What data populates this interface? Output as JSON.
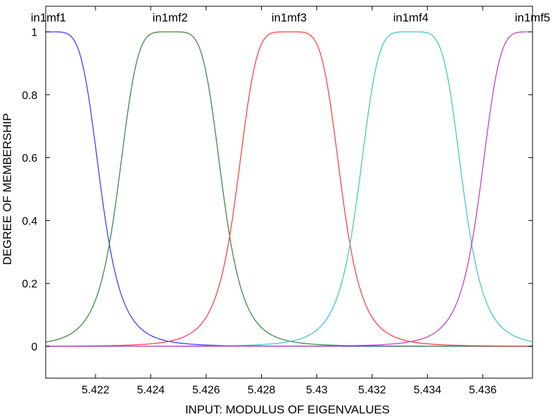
{
  "chart_data": {
    "type": "line",
    "title": "",
    "xlabel": "INPUT: MODULUS OF EIGENVALUES",
    "ylabel": "DEGREE OF MEMBERSHIP",
    "xlim": [
      5.4202,
      5.4378
    ],
    "ylim": [
      -0.1,
      1.0
    ],
    "x_ticks": [
      5.422,
      5.424,
      5.426,
      5.428,
      5.43,
      5.432,
      5.434,
      5.436
    ],
    "x_tick_labels": [
      "5.422",
      "5.424",
      "5.426",
      "5.428",
      "5.43",
      "5.432",
      "5.434",
      "5.436"
    ],
    "y_ticks": [
      0,
      0.2,
      0.4,
      0.6,
      0.8,
      1
    ],
    "y_tick_labels": [
      "0",
      "0.2",
      "0.4",
      "0.6",
      "0.8",
      "1"
    ],
    "grid": false,
    "legend": "none",
    "series": [
      {
        "name": "in1mf1",
        "color": "#3c3cff",
        "func": "gbellmf",
        "params": {
          "a": 1.9,
          "b": 2.5,
          "c": 5.4203
        }
      },
      {
        "name": "in1mf2",
        "color": "#3c8a3c",
        "func": "gbellmf",
        "params": {
          "a": 1.9,
          "b": 2.5,
          "c": 5.4247
        }
      },
      {
        "name": "in1mf3",
        "color": "#ff4040",
        "func": "gbellmf",
        "params": {
          "a": 1.9,
          "b": 2.5,
          "c": 5.429
        }
      },
      {
        "name": "in1mf4",
        "color": "#40c8c8",
        "func": "gbellmf",
        "params": {
          "a": 1.9,
          "b": 2.5,
          "c": 5.4334
        }
      },
      {
        "name": "in1mf5",
        "color": "#c040c0",
        "func": "gbellmf",
        "params": {
          "a": 1.9,
          "b": 2.5,
          "c": 5.4378
        }
      }
    ],
    "x": [
      5.4202,
      5.4212,
      5.4222,
      5.4232,
      5.4242,
      5.4247,
      5.4252,
      5.4262,
      5.4272,
      5.4282,
      5.429,
      5.4298,
      5.4308,
      5.4318,
      5.4328,
      5.4334,
      5.434,
      5.435,
      5.436,
      5.437,
      5.4378
    ],
    "annotations": [
      {
        "text": "in1mf1",
        "x": 5.4203
      },
      {
        "text": "in1mf2",
        "x": 5.4247
      },
      {
        "text": "in1mf3",
        "x": 5.429
      },
      {
        "text": "in1mf4",
        "x": 5.4334
      },
      {
        "text": "in1mf5",
        "x": 5.4378
      }
    ]
  }
}
